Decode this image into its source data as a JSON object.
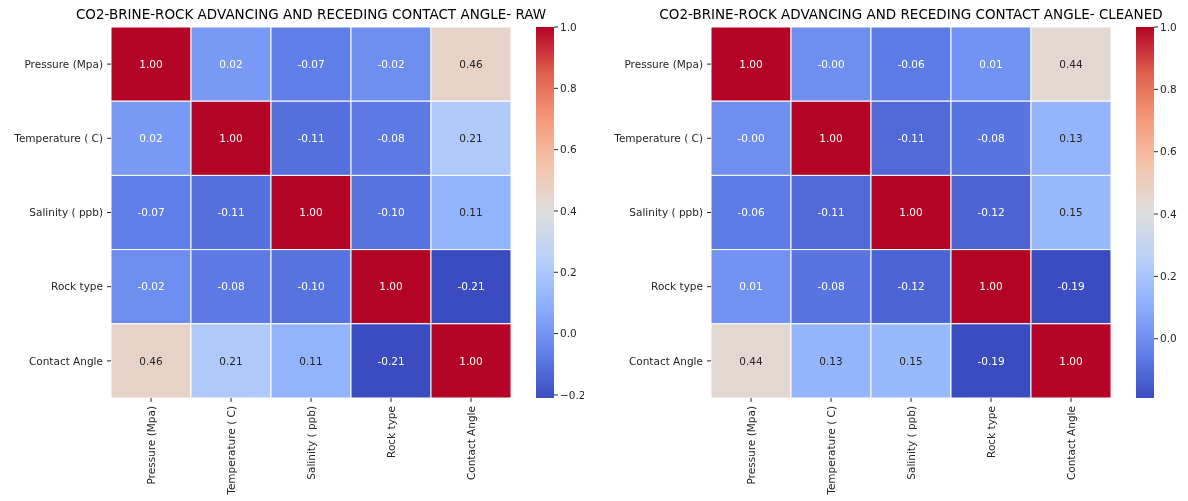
{
  "chart_data": [
    {
      "type": "heatmap",
      "title": "CO2-BRINE-ROCK ADVANCING AND RECEDING CONTACT ANGLE- RAW",
      "categories": [
        "Pressure (Mpa)",
        "Temperature ( C)",
        "Salinity ( ppb)",
        "Rock type",
        "Contact Angle"
      ],
      "y_categories": [
        "Pressure (Mpa)",
        "Temperature ( C)",
        "Salinity ( ppb)",
        "Rock type",
        "Contact Angle"
      ],
      "cells": [
        [
          1.0,
          0.02,
          -0.07,
          -0.02,
          0.46
        ],
        [
          0.02,
          1.0,
          -0.11,
          -0.08,
          0.21
        ],
        [
          -0.07,
          -0.11,
          1.0,
          -0.1,
          0.11
        ],
        [
          -0.02,
          -0.08,
          -0.1,
          1.0,
          -0.21
        ],
        [
          0.46,
          0.21,
          0.11,
          -0.21,
          1.0
        ]
      ],
      "cell_labels": [
        [
          "1.00",
          "0.02",
          "-0.07",
          "-0.02",
          "0.46"
        ],
        [
          "0.02",
          "1.00",
          "-0.11",
          "-0.08",
          "0.21"
        ],
        [
          "-0.07",
          "-0.11",
          "1.00",
          "-0.10",
          "0.11"
        ],
        [
          "-0.02",
          "-0.08",
          "-0.10",
          "1.00",
          "-0.21"
        ],
        [
          "0.46",
          "0.21",
          "0.11",
          "-0.21",
          "1.00"
        ]
      ],
      "clim": [
        -0.21,
        1.0
      ],
      "cticks": [
        {
          "value": -0.2,
          "label": "−0.2"
        },
        {
          "value": 0,
          "label": "0.0"
        },
        {
          "value": 0.2,
          "label": "0.2"
        },
        {
          "value": 0.4,
          "label": "0.4"
        },
        {
          "value": 0.6,
          "label": "0.6"
        },
        {
          "value": 0.8,
          "label": "0.8"
        },
        {
          "value": 1,
          "label": "1.0"
        }
      ]
    },
    {
      "type": "heatmap",
      "title": "CO2-BRINE-ROCK ADVANCING AND RECEDING CONTACT ANGLE- CLEANED",
      "categories": [
        "Pressure (Mpa)",
        "Temperature ( C)",
        "Salinity ( ppb)",
        "Rock type",
        "Contact Angle"
      ],
      "y_categories": [
        "Pressure (Mpa)",
        "Temperature ( C)",
        "Salinity ( ppb)",
        "Rock type",
        "Contact Angle"
      ],
      "cells": [
        [
          1.0,
          0,
          -0.06,
          0.01,
          0.44
        ],
        [
          0,
          1.0,
          -0.11,
          -0.08,
          0.13
        ],
        [
          -0.06,
          -0.11,
          1.0,
          -0.12,
          0.15
        ],
        [
          0.01,
          -0.08,
          -0.12,
          1.0,
          -0.19
        ],
        [
          0.44,
          0.13,
          0.15,
          -0.19,
          1.0
        ]
      ],
      "cell_labels": [
        [
          "1.00",
          "-0.00",
          "-0.06",
          "0.01",
          "0.44"
        ],
        [
          "-0.00",
          "1.00",
          "-0.11",
          "-0.08",
          "0.13"
        ],
        [
          "-0.06",
          "-0.11",
          "1.00",
          "-0.12",
          "0.15"
        ],
        [
          "0.01",
          "-0.08",
          "-0.12",
          "1.00",
          "-0.19"
        ],
        [
          "0.44",
          "0.13",
          "0.15",
          "-0.19",
          "1.00"
        ]
      ],
      "clim": [
        -0.19,
        1.0
      ],
      "cticks": [
        {
          "value": 0,
          "label": "0.0"
        },
        {
          "value": 0.2,
          "label": "0.2"
        },
        {
          "value": 0.4,
          "label": "0.4"
        },
        {
          "value": 0.6,
          "label": "0.6"
        },
        {
          "value": 0.8,
          "label": "0.8"
        },
        {
          "value": 1,
          "label": "1.0"
        }
      ]
    }
  ]
}
